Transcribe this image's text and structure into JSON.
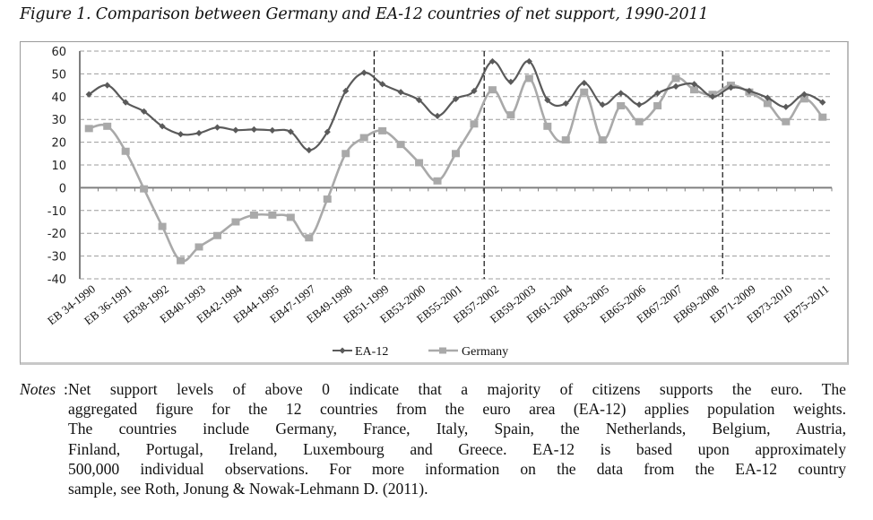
{
  "title": "Figure 1. Comparison between Germany and EA-12 countries of net support, 1990-2011",
  "chart_data": {
    "type": "line",
    "title": "Figure 1. Comparison between Germany and EA-12 countries of net support, 1990-2011",
    "xlabel": "",
    "ylabel": "",
    "ylim": [
      -40,
      60
    ],
    "yticks": [
      60,
      50,
      40,
      30,
      20,
      10,
      0,
      -10,
      -20,
      -30,
      -40
    ],
    "grid": true,
    "legend": "bottom-center",
    "x_tick_labels": [
      "EB 34-1990",
      "EB 36-1991",
      "EB38-1992",
      "EB40-1993",
      "EB42-1994",
      "EB44-1995",
      "EB47-1997",
      "EB49-1998",
      "EB51-1999",
      "EB53-2000",
      "EB55-2001",
      "EB57-2002",
      "EB59-2003",
      "EB61-2004",
      "EB63-2005",
      "EB65-2006",
      "EB67-2007",
      "EB69-2008",
      "EB71-2009",
      "EB73-2010",
      "EB75-2011"
    ],
    "n_points": 41,
    "vertical_markers_after_index": [
      15,
      21,
      34
    ],
    "series": [
      {
        "name": "EA-12",
        "color": "#5a5a5a",
        "marker": "diamond",
        "values": [
          41,
          45,
          37.5,
          33.5,
          27,
          23.5,
          24,
          26.5,
          25.3,
          25.6,
          25.2,
          24.6,
          16.5,
          24.5,
          42.5,
          50.5,
          45.5,
          42,
          38.5,
          31.5,
          39,
          42.5,
          55.5,
          46.5,
          55.5,
          38.5,
          37,
          46,
          36.5,
          41.5,
          36.5,
          41.5,
          44.5,
          45.5,
          40,
          44,
          42.5,
          39.5,
          35.5,
          41,
          37.5
        ]
      },
      {
        "name": "Germany",
        "color": "#a9a9a9",
        "marker": "square",
        "values": [
          26,
          27,
          16,
          -0.5,
          -17,
          -32,
          -26,
          -21,
          -15,
          -12,
          -12,
          -13,
          -22,
          -5,
          15,
          22,
          25,
          19,
          11,
          3,
          15,
          28,
          43,
          32,
          48,
          27,
          21,
          42,
          21,
          36,
          29,
          36,
          48,
          43,
          41,
          45,
          42,
          37,
          29,
          39,
          31
        ]
      }
    ]
  },
  "notes": {
    "label": "Notes",
    "lines": [
      "Net support levels of above 0 indicate that a majority of citizens supports the euro. The",
      "aggregated figure for the 12 countries from the euro area (EA-12) applies population weights.",
      "The countries include Germany, France, Italy, Spain, the Netherlands, Belgium, Austria,",
      "Finland, Portugal, Ireland, Luxembourg and Greece. EA-12 is based upon approximately",
      "500,000 individual observations. For more information on the data from the EA-12 country",
      "sample, see Roth, Jonung & Nowak-Lehmann D. (2011)."
    ]
  }
}
